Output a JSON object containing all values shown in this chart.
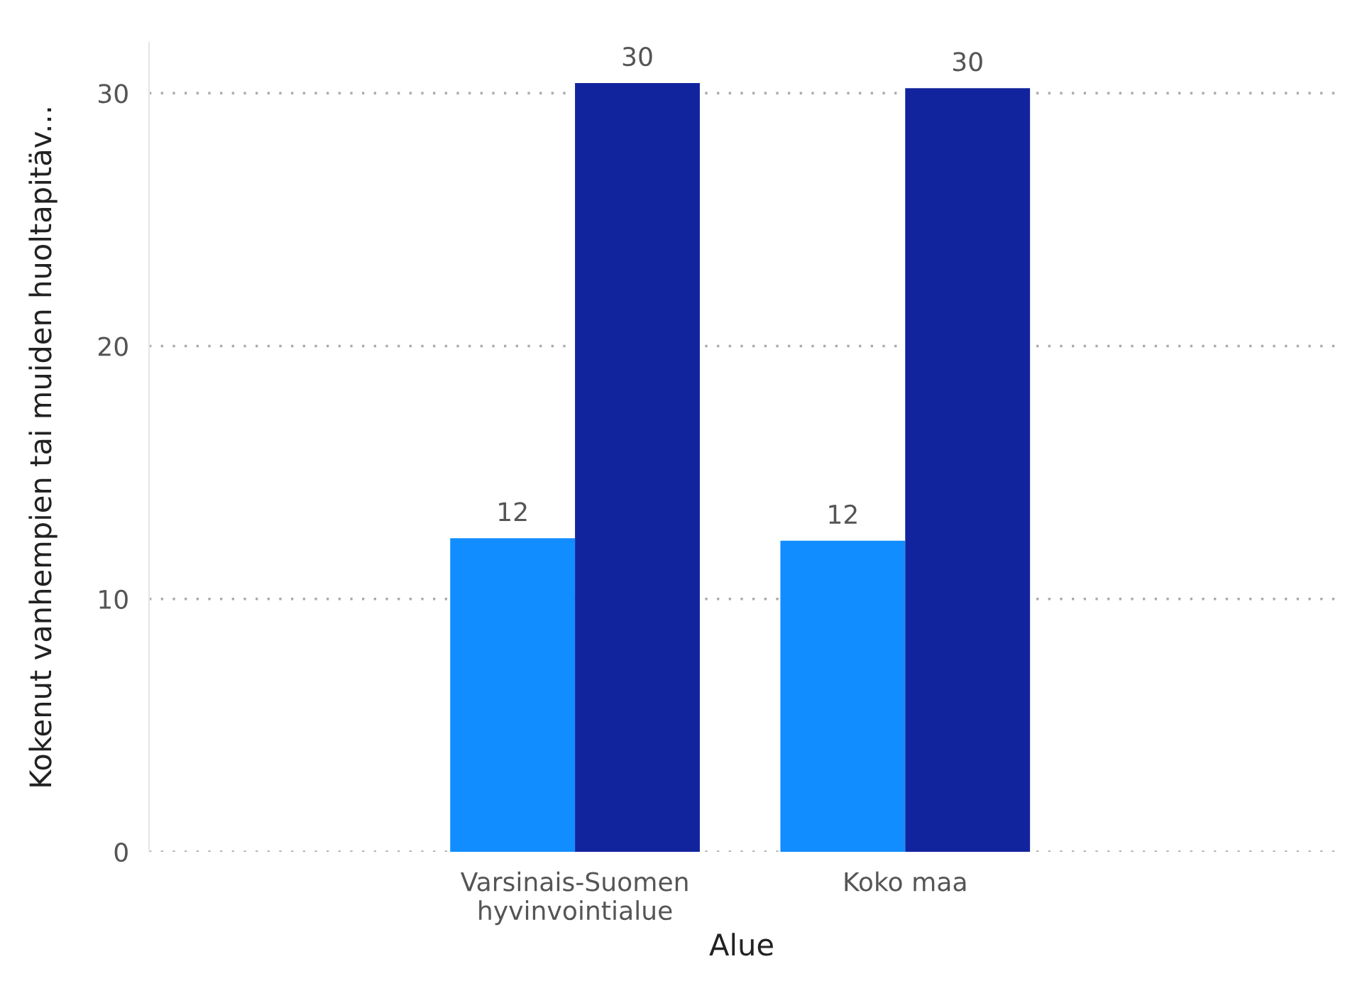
{
  "chart_data": {
    "type": "bar",
    "xlabel": "Alue",
    "ylabel": "Kokenut vanhempien tai muiden huoltapitäv...",
    "categories": [
      "Varsinais-Suomen\nhyvinvointialue",
      "Koko maa"
    ],
    "series": [
      {
        "color": "#118dff",
        "values": [
          12.4,
          12.3
        ],
        "value_labels": [
          "12",
          "12"
        ]
      },
      {
        "color": "#12239e",
        "values": [
          30.4,
          30.2
        ],
        "value_labels": [
          "30",
          "30"
        ]
      }
    ],
    "ylim": [
      0,
      32
    ],
    "yticks": [
      0,
      10,
      20,
      30
    ],
    "grid": "y",
    "legend": false
  }
}
